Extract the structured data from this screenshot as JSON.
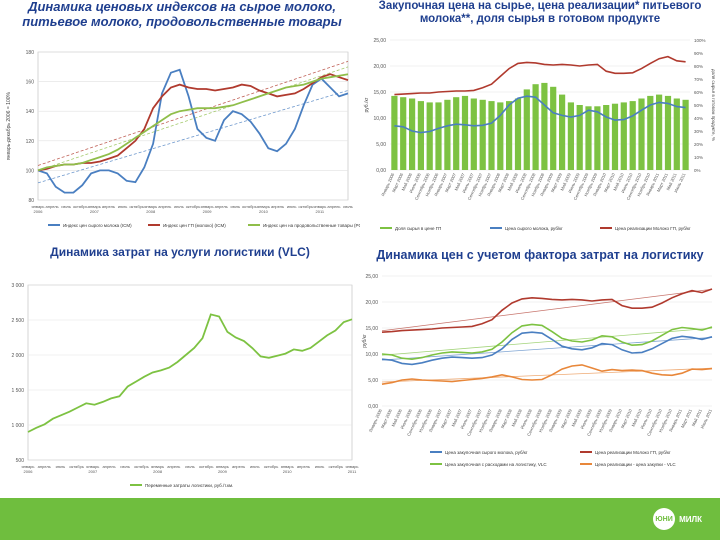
{
  "chart_data": [
    {
      "id": "c1",
      "type": "line",
      "title": "Динамика ценовых индексов на сырое молоко, питьевое молоко, продовольственные товары",
      "ylabel": "январь-декабрь 2006 = 100%",
      "ylim": [
        80,
        180
      ],
      "yticks": [
        "80",
        "100",
        "120",
        "140",
        "160",
        "180"
      ],
      "xticks": [
        "январь 2006",
        "апрель",
        "июль",
        "октябрь",
        "январь 2007",
        "апрель",
        "июль",
        "октябрь",
        "январь 2008",
        "апрель",
        "июль",
        "октябрь",
        "январь 2009",
        "апрель",
        "июль",
        "октябрь",
        "январь 2010",
        "апрель",
        "июль",
        "октябрь",
        "январь 2011",
        "апрель",
        "июль"
      ],
      "series": [
        {
          "name": "Индекс цен сырого молока (ICM)",
          "color": "#4a7fc1",
          "values": [
            100,
            98,
            89,
            85,
            85,
            90,
            98,
            100,
            100,
            98,
            93,
            92,
            102,
            118,
            152,
            166,
            168,
            150,
            128,
            122,
            120,
            134,
            140,
            138,
            133,
            125,
            115,
            113,
            118,
            128,
            144,
            158,
            162,
            156,
            150,
            152
          ]
        },
        {
          "name": "Индекс цен ГП (молоко) (ICM)",
          "color": "#b03a2e",
          "values": [
            100,
            101,
            103,
            104,
            104,
            105,
            105,
            106,
            108,
            110,
            115,
            120,
            128,
            142,
            150,
            156,
            158,
            156,
            155,
            155,
            154,
            155,
            156,
            158,
            157,
            154,
            152,
            150,
            151,
            152,
            155,
            159,
            163,
            165,
            163,
            161
          ]
        },
        {
          "name": "Индекс цен на продовольственные товары (PC)",
          "color": "#8fbe4a",
          "values": [
            100,
            102,
            103,
            104,
            104,
            105,
            107,
            109,
            111,
            114,
            118,
            122,
            126,
            130,
            134,
            138,
            140,
            141,
            142,
            142,
            142,
            143,
            144,
            146,
            148,
            150,
            152,
            154,
            156,
            157,
            158,
            160,
            162,
            163,
            164,
            165
          ]
        }
      ],
      "legend": [
        "Индекс цен сырого молока (ICM)",
        "Индекс цен ГП (молоко) (ICM)",
        "Индекс цен на продовольственные товары (PC)"
      ]
    },
    {
      "id": "c2",
      "type": "bar",
      "title": "Закупочная цена на сырье, цена реализации* питьевого молока**, доля сырья в готовом продукте",
      "ylabel": "руб./кг",
      "ylabel_right": "доля сырья в готовом продукте, %",
      "ylim": [
        0,
        25
      ],
      "y2lim": [
        0,
        100
      ],
      "yticks": [
        "0,00",
        "5,00",
        "10,00",
        "15,00",
        "20,00",
        "25,00"
      ],
      "y2ticks": [
        "0%",
        "10%",
        "20%",
        "30%",
        "40%",
        "50%",
        "60%",
        "70%",
        "80%",
        "90%",
        "100%"
      ],
      "categories": [
        "Январь 2006",
        "Март 2006",
        "Май 2006",
        "Июль 2006",
        "Сентябрь 2006",
        "Ноябрь 2006",
        "Январь 2007",
        "Март 2007",
        "Май 2007",
        "Июль 2007",
        "Сентябрь 2007",
        "Ноябрь 2007",
        "Январь 2008",
        "Март 2008",
        "Май 2008",
        "Июль 2008",
        "Сентябрь 2008",
        "Ноябрь 2008",
        "Январь 2009",
        "Март 2009",
        "Май 2009",
        "Июль 2009",
        "Сентябрь 2009",
        "Ноябрь 2009",
        "Январь 2010",
        "Март 2010",
        "Май 2010",
        "Июль 2010",
        "Сентябрь 2010",
        "Ноябрь 2010",
        "Январь 2011",
        "Март 2011",
        "Май 2011",
        "Июль 2011"
      ],
      "series": [
        {
          "name": "Доля сырья в цене ГП",
          "axis": "right",
          "kind": "bar",
          "color": "#7dc242",
          "values": [
            57,
            56,
            55,
            53,
            52,
            52,
            54,
            56,
            57,
            55,
            54,
            53,
            52,
            53,
            55,
            62,
            66,
            67,
            64,
            58,
            52,
            50,
            49,
            49,
            50,
            51,
            52,
            53,
            55,
            57,
            58,
            57,
            55,
            54
          ]
        },
        {
          "name": "Цена сырого молока, руб/кг",
          "axis": "left",
          "kind": "line",
          "color": "#4a7fc1",
          "values": [
            8.5,
            8.3,
            7.5,
            7.2,
            7.4,
            8.0,
            8.5,
            8.8,
            8.7,
            8.5,
            8.6,
            9.0,
            10.5,
            12.5,
            13.8,
            14.2,
            14.0,
            12.5,
            11.0,
            10.5,
            10.2,
            10.5,
            11.5,
            11.2,
            10.2,
            9.6,
            9.7,
            10.4,
            11.5,
            12.5,
            13.0,
            12.8,
            12.2,
            12.0
          ]
        },
        {
          "name": "Цена реализации Молоко ГП, руб/кг",
          "axis": "left",
          "kind": "line",
          "color": "#b03a2e",
          "values": [
            14.5,
            14.6,
            14.7,
            14.8,
            14.8,
            15.0,
            15.1,
            15.2,
            15.2,
            15.3,
            15.8,
            16.5,
            18.0,
            19.5,
            20.5,
            20.7,
            20.6,
            20.3,
            20.2,
            20.3,
            20.2,
            20.0,
            20.2,
            20.3,
            19.0,
            18.6,
            18.6,
            18.7,
            19.5,
            20.5,
            21.4,
            21.8,
            21.0,
            20.8
          ]
        }
      ],
      "legend": [
        "Доля сырья в цене ГП",
        "Цена сырого молока, руб/кг",
        "Цена реализации Молоко ГП, руб/кг"
      ]
    },
    {
      "id": "c3",
      "type": "line",
      "title": "Динамика затрат на услуги логистики (VLC)",
      "ylim": [
        500,
        3000
      ],
      "yticks": [
        "500",
        "1 000",
        "1 500",
        "2 000",
        "2 500",
        "3 000"
      ],
      "xticks": [
        "январь 2006",
        "апрель",
        "июль",
        "октябрь",
        "январь 2007",
        "апрель",
        "июль",
        "октябрь",
        "январь 2008",
        "апрель",
        "июль",
        "октябрь",
        "январь 2009",
        "апрель",
        "июль",
        "октябрь",
        "январь 2010",
        "апрель",
        "июль",
        "октябрь",
        "январь 2011"
      ],
      "series": [
        {
          "name": "Переменные затраты логистики, руб./т.км.",
          "color": "#7dc242",
          "values": [
            900,
            960,
            1010,
            1090,
            1140,
            1190,
            1250,
            1310,
            1290,
            1330,
            1380,
            1410,
            1550,
            1620,
            1690,
            1750,
            1780,
            1820,
            1900,
            2000,
            2100,
            2240,
            2580,
            2550,
            2330,
            2250,
            2200,
            2100,
            1980,
            1960,
            1990,
            2020,
            2080,
            2060,
            2100,
            2190,
            2280,
            2350,
            2470,
            2510
          ]
        }
      ],
      "legend": [
        "Переменные затраты логистики, руб./т.км."
      ]
    },
    {
      "id": "c4",
      "type": "line",
      "title": "Динамика цен с учетом фактора затрат на логистику",
      "ylabel": "руб/кг",
      "ylim": [
        0,
        25
      ],
      "yticks": [
        "0,00",
        "5,00",
        "10,00",
        "15,00",
        "20,00",
        "25,00"
      ],
      "categories": [
        "Январь 2006",
        "Март 2006",
        "Май 2006",
        "Июль 2006",
        "Сентябрь 2006",
        "Ноябрь 2006",
        "Январь 2007",
        "Март 2007",
        "Май 2007",
        "Июль 2007",
        "Сентябрь 2007",
        "Ноябрь 2007",
        "Январь 2008",
        "Март 2008",
        "Май 2008",
        "Июль 2008",
        "Сентябрь 2008",
        "Ноябрь 2008",
        "Январь 2009",
        "Март 2009",
        "Май 2009",
        "Июль 2009",
        "Сентябрь 2009",
        "Ноябрь 2009",
        "Январь 2010",
        "Март 2010",
        "Май 2010",
        "Июль 2010",
        "Сентябрь 2010",
        "Ноябрь 2010",
        "Январь 2011",
        "Март 2011",
        "Май 2011",
        "Июль 2011"
      ],
      "series": [
        {
          "name": "Цена закупочная сырого молока, руб/кг",
          "color": "#4a7fc1",
          "values": [
            9.0,
            8.8,
            8.2,
            8.0,
            8.3,
            8.8,
            9.2,
            9.4,
            9.3,
            9.2,
            9.3,
            9.8,
            11.0,
            12.8,
            14.0,
            14.2,
            14.0,
            12.8,
            11.5,
            11.0,
            10.8,
            11.2,
            12.0,
            11.8,
            10.8,
            10.2,
            10.3,
            11.0,
            12.0,
            13.0,
            13.4,
            13.2,
            12.8,
            13.3
          ]
        },
        {
          "name": "Цена реализации Молоко ГП, руб/кг",
          "color": "#b03a2e",
          "values": [
            14.2,
            14.3,
            14.5,
            14.6,
            14.7,
            14.8,
            15.0,
            15.1,
            15.2,
            15.3,
            15.8,
            16.6,
            18.4,
            19.8,
            20.6,
            20.8,
            20.7,
            20.5,
            20.4,
            20.5,
            20.4,
            20.2,
            20.4,
            20.5,
            19.3,
            18.8,
            18.8,
            19.0,
            19.8,
            20.8,
            21.6,
            22.2,
            21.8,
            22.5
          ]
        },
        {
          "name": "Цена закупочная с расходами на логистику, VLC",
          "color": "#7dc242",
          "values": [
            10.0,
            9.8,
            9.2,
            9.0,
            9.3,
            9.8,
            10.2,
            10.4,
            10.3,
            10.2,
            10.4,
            10.9,
            12.3,
            14.1,
            15.4,
            15.7,
            15.5,
            14.3,
            13.0,
            12.5,
            12.3,
            12.7,
            13.5,
            13.3,
            12.3,
            11.7,
            11.8,
            12.5,
            13.6,
            14.7,
            15.1,
            14.9,
            14.6,
            15.2
          ]
        },
        {
          "name": "Цена реализации - цена закупки - VLC",
          "color": "#e8873a",
          "values": [
            4.2,
            4.5,
            5.0,
            5.2,
            5.0,
            4.9,
            4.8,
            4.7,
            4.9,
            5.1,
            5.3,
            5.6,
            6.0,
            5.6,
            5.1,
            5.0,
            5.1,
            6.0,
            7.1,
            7.7,
            7.9,
            7.3,
            6.7,
            7.0,
            6.8,
            6.9,
            6.8,
            6.3,
            6.0,
            5.9,
            6.3,
            7.1,
            7.0,
            7.2
          ]
        }
      ],
      "legend": [
        "Цена закупочная сырого молока, руб/кг",
        "Цена реализации Молоко ГП, руб/кг",
        "Цена закупочная с расходами на логистику, VLC",
        "Цена реализации - цена закупки - VLC"
      ]
    }
  ],
  "footer": {
    "logo_circle": "ЮНИ",
    "logo_text": "МИЛК"
  }
}
